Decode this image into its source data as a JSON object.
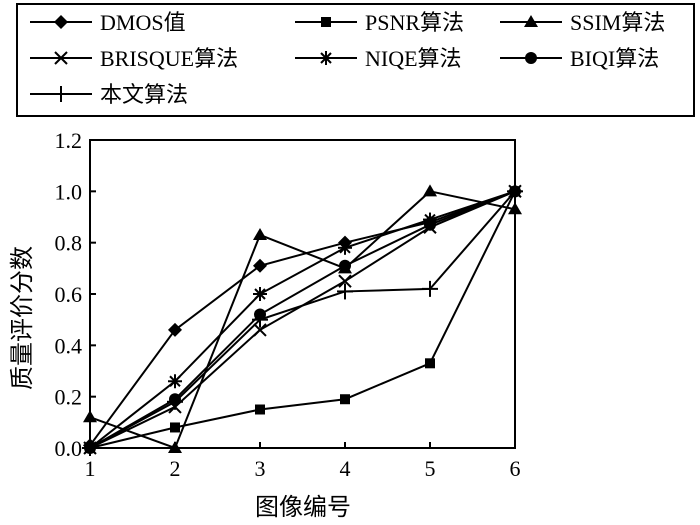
{
  "chart_data": {
    "type": "line",
    "title": "",
    "xlabel": "图像编号",
    "ylabel": "质量评价分数",
    "x": [
      1,
      2,
      3,
      4,
      5,
      6
    ],
    "xlim": [
      1,
      6
    ],
    "ylim": [
      0.0,
      1.2
    ],
    "x_ticks": [
      "1",
      "2",
      "3",
      "4",
      "5",
      "6"
    ],
    "y_ticks": [
      "0.0",
      "0.2",
      "0.4",
      "0.6",
      "0.8",
      "1.0",
      "1.2"
    ],
    "grid": false,
    "legend_position": "top",
    "series": [
      {
        "name": "DMOS值",
        "marker": "diamond",
        "values": [
          0.01,
          0.46,
          0.71,
          0.8,
          0.88,
          1.0
        ]
      },
      {
        "name": "PSNR算法",
        "marker": "square",
        "values": [
          0.0,
          0.08,
          0.15,
          0.19,
          0.33,
          1.0
        ]
      },
      {
        "name": "SSIM算法",
        "marker": "triangle",
        "values": [
          0.12,
          0.0,
          0.83,
          0.7,
          1.0,
          0.93
        ]
      },
      {
        "name": "BRISQUE算法",
        "marker": "x",
        "values": [
          0.0,
          0.16,
          0.46,
          0.65,
          0.86,
          1.0
        ]
      },
      {
        "name": "NIQE算法",
        "marker": "asterisk",
        "values": [
          0.0,
          0.26,
          0.6,
          0.78,
          0.89,
          1.0
        ]
      },
      {
        "name": "BIQI算法",
        "marker": "circle",
        "values": [
          0.0,
          0.19,
          0.52,
          0.71,
          0.87,
          1.0
        ]
      },
      {
        "name": "本文算法",
        "marker": "plus",
        "values": [
          0.0,
          0.18,
          0.5,
          0.61,
          0.62,
          1.0
        ]
      }
    ]
  }
}
